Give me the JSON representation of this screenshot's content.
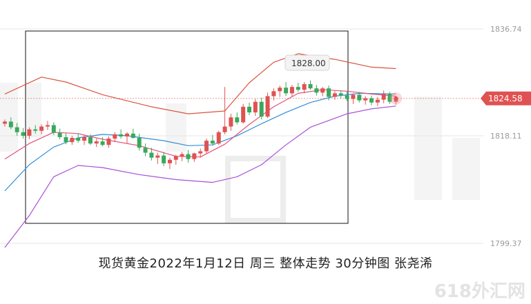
{
  "caption": "现货黄金2022年1月12日 周三 整体走势  30分钟图  张尧浠",
  "watermark": "618外汇网",
  "price_labels": {
    "top": "1836.74",
    "current": "1824.58",
    "mid": "1818.11",
    "bottom": "1799.37"
  },
  "annotation": "1828.00",
  "colors": {
    "up": "#e05252",
    "down": "#3aa85c",
    "upper_band": "#d9533f",
    "lower_band": "#a84fd6",
    "ma_fast": "#e0507a",
    "ma_slow": "#2f8fd8",
    "current_line": "#e05252"
  },
  "chart_data": {
    "type": "candlestick",
    "timeframe": "30分钟",
    "y_ticks": [
      1836.74,
      1818.11,
      1799.37
    ],
    "current_price": 1824.58,
    "high_marker": 1828.0,
    "ylim": [
      1795.5,
      1838.5
    ],
    "candles": [
      [
        1821.0,
        1821.6,
        1820.6,
        1821.3
      ],
      [
        1821.3,
        1821.9,
        1820.2,
        1820.5
      ],
      [
        1820.5,
        1821.1,
        1819.3,
        1819.8
      ],
      [
        1819.8,
        1820.4,
        1818.9,
        1819.3
      ],
      [
        1819.3,
        1820.5,
        1818.8,
        1820.2
      ],
      [
        1820.2,
        1820.8,
        1819.6,
        1820.0
      ],
      [
        1820.0,
        1820.9,
        1819.5,
        1820.6
      ],
      [
        1820.6,
        1821.4,
        1820.1,
        1820.8
      ],
      [
        1820.8,
        1821.2,
        1819.4,
        1819.7
      ],
      [
        1819.7,
        1820.3,
        1818.8,
        1819.1
      ],
      [
        1819.1,
        1819.7,
        1818.1,
        1818.4
      ],
      [
        1818.4,
        1819.3,
        1818.0,
        1819.0
      ],
      [
        1819.0,
        1819.6,
        1818.3,
        1818.6
      ],
      [
        1818.6,
        1819.4,
        1818.0,
        1819.1
      ],
      [
        1819.1,
        1819.5,
        1818.0,
        1818.2
      ],
      [
        1818.2,
        1818.9,
        1817.7,
        1818.5
      ],
      [
        1818.5,
        1819.1,
        1817.8,
        1818.0
      ],
      [
        1818.0,
        1819.2,
        1817.6,
        1818.9
      ],
      [
        1818.9,
        1819.8,
        1818.4,
        1819.5
      ],
      [
        1819.5,
        1820.2,
        1818.9,
        1819.2
      ],
      [
        1819.2,
        1819.8,
        1818.2,
        1819.6
      ],
      [
        1819.6,
        1820.3,
        1818.9,
        1819.0
      ],
      [
        1819.0,
        1819.6,
        1817.2,
        1817.6
      ],
      [
        1817.6,
        1818.2,
        1816.4,
        1816.9
      ],
      [
        1816.9,
        1817.6,
        1815.8,
        1816.2
      ],
      [
        1816.2,
        1816.9,
        1815.3,
        1816.5
      ],
      [
        1816.5,
        1817.0,
        1815.0,
        1815.4
      ],
      [
        1815.4,
        1816.2,
        1814.6,
        1815.9
      ],
      [
        1815.9,
        1816.6,
        1815.2,
        1816.4
      ],
      [
        1816.4,
        1817.0,
        1815.7,
        1816.7
      ],
      [
        1816.7,
        1817.3,
        1815.5,
        1816.0
      ],
      [
        1816.0,
        1816.9,
        1815.6,
        1816.8
      ],
      [
        1816.8,
        1817.5,
        1816.2,
        1817.1
      ],
      [
        1817.1,
        1818.9,
        1816.7,
        1818.6
      ],
      [
        1818.6,
        1819.4,
        1817.9,
        1818.2
      ],
      [
        1818.2,
        1820.0,
        1818.0,
        1819.8
      ],
      [
        1819.8,
        1826.2,
        1819.5,
        1820.6
      ],
      [
        1820.6,
        1822.4,
        1820.0,
        1821.9
      ],
      [
        1821.9,
        1822.6,
        1820.9,
        1821.2
      ],
      [
        1821.2,
        1823.8,
        1821.0,
        1823.4
      ],
      [
        1823.4,
        1824.0,
        1822.2,
        1822.6
      ],
      [
        1822.6,
        1824.5,
        1822.1,
        1824.1
      ],
      [
        1824.1,
        1824.7,
        1821.6,
        1822.0
      ],
      [
        1822.0,
        1825.4,
        1821.8,
        1824.9
      ],
      [
        1824.9,
        1826.0,
        1824.3,
        1825.6
      ],
      [
        1825.6,
        1826.4,
        1824.8,
        1826.1
      ],
      [
        1826.1,
        1826.9,
        1824.9,
        1825.3
      ],
      [
        1825.3,
        1826.5,
        1824.8,
        1826.2
      ],
      [
        1826.2,
        1826.8,
        1825.5,
        1825.8
      ],
      [
        1825.8,
        1826.9,
        1825.3,
        1826.6
      ],
      [
        1826.6,
        1827.1,
        1825.8,
        1826.0
      ],
      [
        1826.0,
        1826.5,
        1825.0,
        1825.4
      ],
      [
        1825.4,
        1826.2,
        1824.9,
        1826.0
      ],
      [
        1826.0,
        1826.4,
        1824.3,
        1824.8
      ],
      [
        1824.8,
        1825.6,
        1824.4,
        1825.3
      ],
      [
        1825.3,
        1825.7,
        1824.6,
        1825.0
      ],
      [
        1825.0,
        1825.6,
        1824.2,
        1824.5
      ],
      [
        1824.5,
        1825.3,
        1823.8,
        1825.1
      ],
      [
        1825.1,
        1825.5,
        1824.0,
        1824.3
      ],
      [
        1824.3,
        1824.9,
        1823.7,
        1824.6
      ],
      [
        1824.6,
        1825.0,
        1823.6,
        1824.0
      ],
      [
        1824.0,
        1824.8,
        1823.5,
        1824.4
      ],
      [
        1824.4,
        1825.7,
        1823.9,
        1825.2
      ],
      [
        1825.2,
        1825.5,
        1823.8,
        1824.1
      ],
      [
        1824.1,
        1824.9,
        1823.7,
        1824.58
      ]
    ],
    "upper_band": [
      [
        0,
        1825.2
      ],
      [
        6,
        1827.6
      ],
      [
        10,
        1826.9
      ],
      [
        16,
        1825.1
      ],
      [
        24,
        1823.4
      ],
      [
        30,
        1822.4
      ],
      [
        36,
        1822.8
      ],
      [
        40,
        1826.8
      ],
      [
        44,
        1829.7
      ],
      [
        48,
        1830.9
      ],
      [
        54,
        1830.1
      ],
      [
        60,
        1829.0
      ],
      [
        64,
        1828.8
      ]
    ],
    "lower_band": [
      [
        0,
        1803.5
      ],
      [
        4,
        1808.0
      ],
      [
        8,
        1813.5
      ],
      [
        12,
        1815.1
      ],
      [
        16,
        1814.8
      ],
      [
        22,
        1813.8
      ],
      [
        28,
        1813.1
      ],
      [
        34,
        1812.7
      ],
      [
        38,
        1813.5
      ],
      [
        42,
        1815.2
      ],
      [
        46,
        1818.0
      ],
      [
        50,
        1820.5
      ],
      [
        56,
        1822.4
      ],
      [
        60,
        1823.1
      ],
      [
        64,
        1823.5
      ]
    ],
    "ma_fast": [
      [
        0,
        1816.0
      ],
      [
        4,
        1818.2
      ],
      [
        8,
        1819.8
      ],
      [
        12,
        1819.6
      ],
      [
        16,
        1818.8
      ],
      [
        22,
        1817.9
      ],
      [
        28,
        1816.4
      ],
      [
        32,
        1816.3
      ],
      [
        36,
        1818.1
      ],
      [
        40,
        1820.9
      ],
      [
        44,
        1823.4
      ],
      [
        48,
        1825.3
      ],
      [
        52,
        1825.8
      ],
      [
        56,
        1825.6
      ],
      [
        60,
        1825.2
      ],
      [
        64,
        1824.9
      ]
    ],
    "ma_slow": [
      [
        0,
        1811.5
      ],
      [
        4,
        1815.2
      ],
      [
        8,
        1817.7
      ],
      [
        12,
        1819.0
      ],
      [
        16,
        1819.5
      ],
      [
        20,
        1819.3
      ],
      [
        26,
        1818.6
      ],
      [
        30,
        1817.9
      ],
      [
        34,
        1818.0
      ],
      [
        38,
        1819.3
      ],
      [
        42,
        1821.0
      ],
      [
        46,
        1822.6
      ],
      [
        50,
        1824.0
      ],
      [
        54,
        1824.9
      ],
      [
        58,
        1825.3
      ],
      [
        64,
        1825.2
      ]
    ]
  }
}
